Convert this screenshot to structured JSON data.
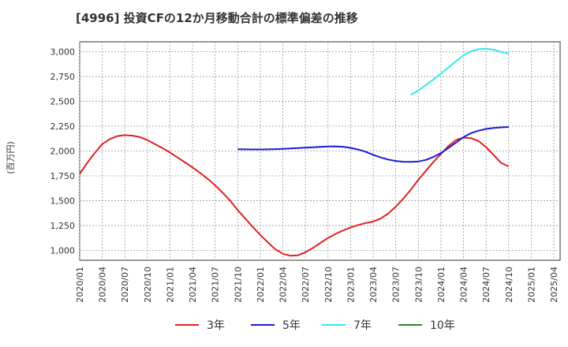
{
  "chart_data": {
    "type": "line",
    "title": "[4996]  投資CFの12か月移動合計の標準偏差の推移",
    "ylabel": "(百万円)",
    "xlabel": "",
    "ylim": [
      900,
      3100
    ],
    "y_ticks": [
      1000,
      1250,
      1500,
      1750,
      2000,
      2250,
      2500,
      2750,
      3000
    ],
    "y_tick_labels": [
      "1,000",
      "1,250",
      "1,500",
      "1,750",
      "2,000",
      "2,250",
      "2,500",
      "2,750",
      "3,000"
    ],
    "x_ticks": [
      "2020/01",
      "2020/04",
      "2020/07",
      "2020/10",
      "2021/01",
      "2021/04",
      "2021/07",
      "2021/10",
      "2022/01",
      "2022/04",
      "2022/07",
      "2022/10",
      "2023/01",
      "2023/04",
      "2023/07",
      "2023/10",
      "2024/01",
      "2024/04",
      "2024/07",
      "2024/10",
      "2025/01",
      "2025/04"
    ],
    "grid": true,
    "legend_position": "bottom",
    "series": [
      {
        "name": "3年",
        "color": "#e02020",
        "points": [
          [
            "2020/01",
            1770
          ],
          [
            "2020/02",
            1880
          ],
          [
            "2020/03",
            1980
          ],
          [
            "2020/04",
            2070
          ],
          [
            "2020/05",
            2120
          ],
          [
            "2020/06",
            2150
          ],
          [
            "2020/07",
            2160
          ],
          [
            "2020/08",
            2155
          ],
          [
            "2020/09",
            2140
          ],
          [
            "2020/10",
            2110
          ],
          [
            "2020/11",
            2070
          ],
          [
            "2020/12",
            2030
          ],
          [
            "2021/01",
            1985
          ],
          [
            "2021/02",
            1935
          ],
          [
            "2021/03",
            1885
          ],
          [
            "2021/04",
            1835
          ],
          [
            "2021/05",
            1780
          ],
          [
            "2021/06",
            1720
          ],
          [
            "2021/07",
            1655
          ],
          [
            "2021/08",
            1580
          ],
          [
            "2021/09",
            1500
          ],
          [
            "2021/10",
            1405
          ],
          [
            "2021/11",
            1320
          ],
          [
            "2021/12",
            1235
          ],
          [
            "2022/01",
            1155
          ],
          [
            "2022/02",
            1080
          ],
          [
            "2022/03",
            1010
          ],
          [
            "2022/04",
            965
          ],
          [
            "2022/05",
            945
          ],
          [
            "2022/06",
            950
          ],
          [
            "2022/07",
            980
          ],
          [
            "2022/08",
            1025
          ],
          [
            "2022/09",
            1075
          ],
          [
            "2022/10",
            1125
          ],
          [
            "2022/11",
            1165
          ],
          [
            "2022/12",
            1200
          ],
          [
            "2023/01",
            1230
          ],
          [
            "2023/02",
            1255
          ],
          [
            "2023/03",
            1275
          ],
          [
            "2023/04",
            1290
          ],
          [
            "2023/05",
            1320
          ],
          [
            "2023/06",
            1370
          ],
          [
            "2023/07",
            1440
          ],
          [
            "2023/08",
            1520
          ],
          [
            "2023/09",
            1610
          ],
          [
            "2023/10",
            1710
          ],
          [
            "2023/11",
            1800
          ],
          [
            "2023/12",
            1890
          ],
          [
            "2024/01",
            1970
          ],
          [
            "2024/02",
            2050
          ],
          [
            "2024/03",
            2110
          ],
          [
            "2024/04",
            2135
          ],
          [
            "2024/05",
            2130
          ],
          [
            "2024/06",
            2100
          ],
          [
            "2024/07",
            2040
          ],
          [
            "2024/08",
            1960
          ],
          [
            "2024/09",
            1880
          ],
          [
            "2024/10",
            1845
          ]
        ]
      },
      {
        "name": "5年",
        "color": "#1a1adc",
        "points": [
          [
            "2021/10",
            2018
          ],
          [
            "2021/11",
            2017
          ],
          [
            "2021/12",
            2016
          ],
          [
            "2022/01",
            2016
          ],
          [
            "2022/02",
            2017
          ],
          [
            "2022/03",
            2019
          ],
          [
            "2022/04",
            2022
          ],
          [
            "2022/05",
            2026
          ],
          [
            "2022/06",
            2030
          ],
          [
            "2022/07",
            2034
          ],
          [
            "2022/08",
            2038
          ],
          [
            "2022/09",
            2042
          ],
          [
            "2022/10",
            2046
          ],
          [
            "2022/11",
            2047
          ],
          [
            "2022/12",
            2043
          ],
          [
            "2023/01",
            2032
          ],
          [
            "2023/02",
            2015
          ],
          [
            "2023/03",
            1993
          ],
          [
            "2023/04",
            1962
          ],
          [
            "2023/05",
            1935
          ],
          [
            "2023/06",
            1914
          ],
          [
            "2023/07",
            1900
          ],
          [
            "2023/08",
            1892
          ],
          [
            "2023/09",
            1890
          ],
          [
            "2023/10",
            1895
          ],
          [
            "2023/11",
            1910
          ],
          [
            "2023/12",
            1940
          ],
          [
            "2024/01",
            1980
          ],
          [
            "2024/02",
            2030
          ],
          [
            "2024/03",
            2085
          ],
          [
            "2024/04",
            2140
          ],
          [
            "2024/05",
            2180
          ],
          [
            "2024/06",
            2205
          ],
          [
            "2024/07",
            2222
          ],
          [
            "2024/08",
            2232
          ],
          [
            "2024/09",
            2238
          ],
          [
            "2024/10",
            2242
          ]
        ]
      },
      {
        "name": "7年",
        "color": "#33e8f0",
        "points": [
          [
            "2023/09",
            2565
          ],
          [
            "2023/10",
            2610
          ],
          [
            "2023/11",
            2665
          ],
          [
            "2023/12",
            2720
          ],
          [
            "2024/01",
            2780
          ],
          [
            "2024/02",
            2840
          ],
          [
            "2024/03",
            2905
          ],
          [
            "2024/04",
            2965
          ],
          [
            "2024/05",
            3005
          ],
          [
            "2024/06",
            3025
          ],
          [
            "2024/07",
            3030
          ],
          [
            "2024/08",
            3020
          ],
          [
            "2024/09",
            2998
          ],
          [
            "2024/10",
            2980
          ]
        ]
      },
      {
        "name": "10年",
        "color": "#2a8a2a",
        "points": []
      }
    ]
  }
}
